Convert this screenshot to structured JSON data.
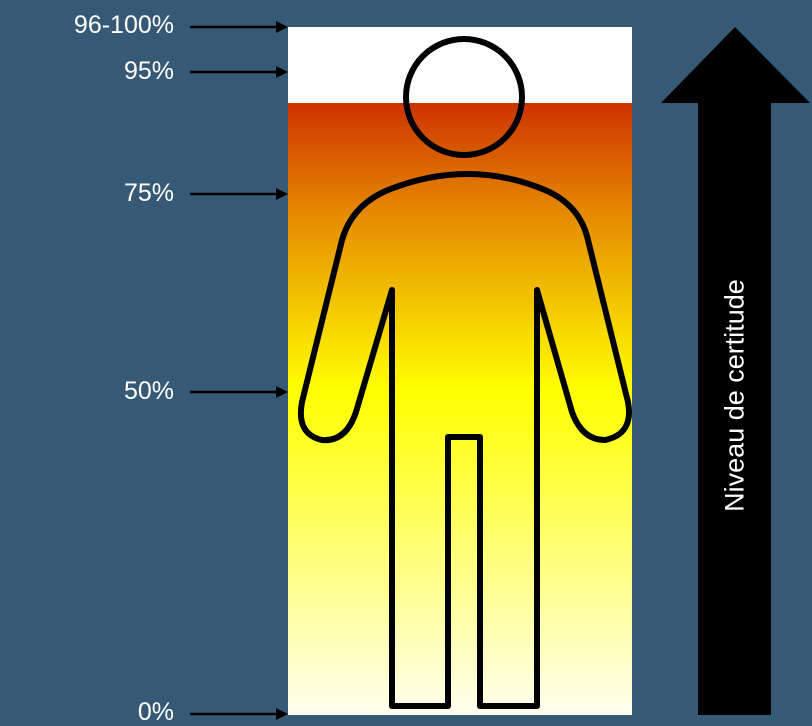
{
  "colors": {
    "background": "#365a75",
    "gradient_top": "#cc3300",
    "gradient_upper": "#e58a00",
    "gradient_mid": "#ffff00",
    "gradient_bottom": "#fffff0",
    "arrow": "#000000",
    "figure_outline": "#000000"
  },
  "scale": {
    "labels": [
      {
        "id": "l96",
        "text": "96-100%"
      },
      {
        "id": "l95",
        "text": "95%"
      },
      {
        "id": "l75",
        "text": "75%"
      },
      {
        "id": "l50",
        "text": "50%"
      },
      {
        "id": "l0",
        "text": "0%"
      }
    ]
  },
  "arrow": {
    "label": "Niveau de certitude",
    "icon": "up-arrow-icon"
  },
  "figure": {
    "icon": "person-outline-icon"
  }
}
